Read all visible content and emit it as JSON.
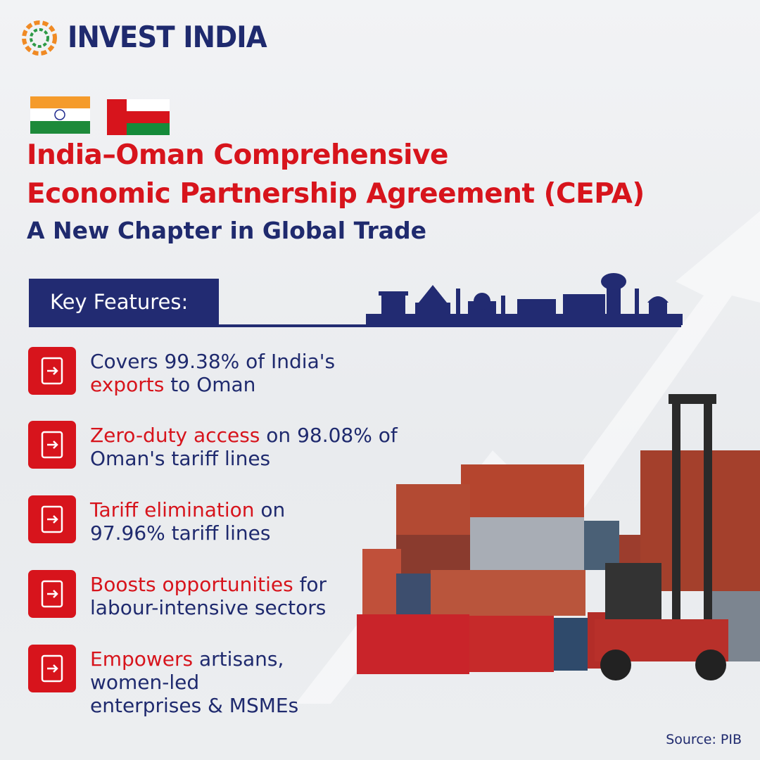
{
  "brand": "INVEST INDIA",
  "header": {
    "title_lines": [
      "India–Oman Comprehensive",
      "Economic Partnership Agreement (CEPA)"
    ],
    "subtitle": "A New Chapter in Global Trade"
  },
  "section_label": "Key Features:",
  "features": [
    {
      "lines": [
        [
          {
            "text": "Covers 99.38% of India's",
            "emphasis": false
          }
        ],
        [
          {
            "text": "exports",
            "emphasis": true
          },
          {
            "text": " to Oman",
            "emphasis": false
          }
        ]
      ]
    },
    {
      "lines": [
        [
          {
            "text": "Zero-duty access",
            "emphasis": true
          },
          {
            "text": " on 98.08% of",
            "emphasis": false
          }
        ],
        [
          {
            "text": "Oman's tariff lines",
            "emphasis": false
          }
        ]
      ]
    },
    {
      "lines": [
        [
          {
            "text": "Tariff elimination",
            "emphasis": true
          },
          {
            "text": " on",
            "emphasis": false
          }
        ],
        [
          {
            "text": "97.96% tariff lines",
            "emphasis": false
          }
        ]
      ]
    },
    {
      "lines": [
        [
          {
            "text": "Boosts opportunities",
            "emphasis": true
          },
          {
            "text": " for",
            "emphasis": false
          }
        ],
        [
          {
            "text": "labour-intensive sectors",
            "emphasis": false
          }
        ]
      ]
    },
    {
      "lines": [
        [
          {
            "text": "Empowers",
            "emphasis": true
          },
          {
            "text": " artisans,",
            "emphasis": false
          }
        ],
        [
          {
            "text": "women-led",
            "emphasis": false
          }
        ],
        [
          {
            "text": "enterprises & MSMEs",
            "emphasis": false
          }
        ]
      ]
    }
  ],
  "source": "Source: PIB"
}
